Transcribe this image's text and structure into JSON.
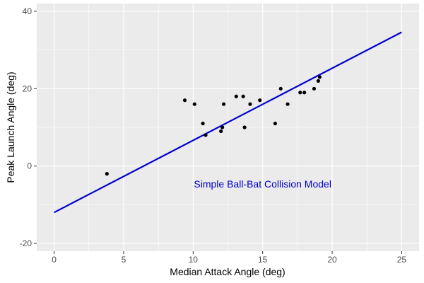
{
  "chart_data": {
    "type": "scatter",
    "xlabel": "Median Attack Angle (deg)",
    "ylabel": "Peak Launch Angle (deg)",
    "xlim": [
      -1.25,
      26.25
    ],
    "ylim": [
      -22,
      42
    ],
    "x_ticks": [
      0,
      5,
      10,
      15,
      20,
      25
    ],
    "x_tick_labels": [
      "0",
      "5",
      "10",
      "15",
      "20",
      "25"
    ],
    "y_ticks": [
      -20,
      0,
      20,
      40
    ],
    "y_tick_labels": [
      "-20",
      "0",
      "20",
      "40"
    ],
    "grid": true,
    "points": [
      {
        "x": 3.8,
        "y": -2
      },
      {
        "x": 9.4,
        "y": 17
      },
      {
        "x": 10.1,
        "y": 16
      },
      {
        "x": 10.7,
        "y": 11
      },
      {
        "x": 10.9,
        "y": 8
      },
      {
        "x": 12.0,
        "y": 9
      },
      {
        "x": 12.1,
        "y": 10
      },
      {
        "x": 12.2,
        "y": 16
      },
      {
        "x": 13.1,
        "y": 18
      },
      {
        "x": 13.6,
        "y": 18
      },
      {
        "x": 13.7,
        "y": 10
      },
      {
        "x": 14.1,
        "y": 16
      },
      {
        "x": 14.8,
        "y": 17
      },
      {
        "x": 15.9,
        "y": 11
      },
      {
        "x": 16.3,
        "y": 20
      },
      {
        "x": 16.8,
        "y": 16
      },
      {
        "x": 17.7,
        "y": 19
      },
      {
        "x": 18.0,
        "y": 19
      },
      {
        "x": 18.7,
        "y": 20
      },
      {
        "x": 19.0,
        "y": 22
      },
      {
        "x": 19.1,
        "y": 23
      }
    ],
    "model_line": {
      "x": [
        0,
        25
      ],
      "y": [
        -12,
        34.6
      ],
      "color": "#0000cc"
    },
    "annotation": {
      "text": "Simple Ball-Bat Collision Model",
      "x": 15,
      "y": -5.5,
      "color": "#0000cc"
    },
    "colors": {
      "panel_background": "#ebebeb",
      "grid_major": "#ffffff",
      "points": "#000000"
    }
  }
}
